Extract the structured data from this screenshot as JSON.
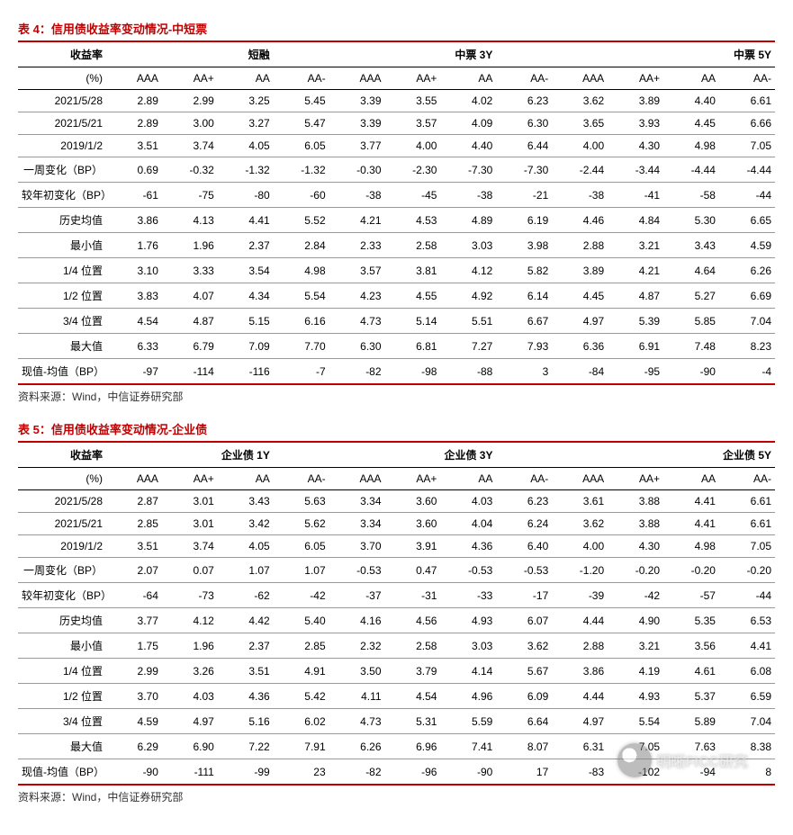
{
  "tables": [
    {
      "caption": "表 4：信用债收益率变动情况-中短票",
      "source": "资料来源：Wind，中信证券研究部",
      "header1": [
        "收益率",
        "",
        "",
        "短融",
        "",
        "",
        "",
        "中票 3Y",
        "",
        "",
        "",
        "",
        "中票 5Y"
      ],
      "header2": [
        "(%)",
        "AAA",
        "AA+",
        "AA",
        "AA-",
        "AAA",
        "AA+",
        "AA",
        "AA-",
        "AAA",
        "AA+",
        "AA",
        "AA-"
      ],
      "rows": [
        [
          "2021/5/28",
          "2.89",
          "2.99",
          "3.25",
          "5.45",
          "3.39",
          "3.55",
          "4.02",
          "6.23",
          "3.62",
          "3.89",
          "4.40",
          "6.61"
        ],
        [
          "2021/5/21",
          "2.89",
          "3.00",
          "3.27",
          "5.47",
          "3.39",
          "3.57",
          "4.09",
          "6.30",
          "3.65",
          "3.93",
          "4.45",
          "6.66"
        ],
        [
          "2019/1/2",
          "3.51",
          "3.74",
          "4.05",
          "6.05",
          "3.77",
          "4.00",
          "4.40",
          "6.44",
          "4.00",
          "4.30",
          "4.98",
          "7.05"
        ],
        [
          "一周变化（BP）",
          "0.69",
          "-0.32",
          "-1.32",
          "-1.32",
          "-0.30",
          "-2.30",
          "-7.30",
          "-7.30",
          "-2.44",
          "-3.44",
          "-4.44",
          "-4.44"
        ],
        [
          "较年初变化（BP）",
          "-61",
          "-75",
          "-80",
          "-60",
          "-38",
          "-45",
          "-38",
          "-21",
          "-38",
          "-41",
          "-58",
          "-44"
        ],
        [
          "历史均值",
          "3.86",
          "4.13",
          "4.41",
          "5.52",
          "4.21",
          "4.53",
          "4.89",
          "6.19",
          "4.46",
          "4.84",
          "5.30",
          "6.65"
        ],
        [
          "最小值",
          "1.76",
          "1.96",
          "2.37",
          "2.84",
          "2.33",
          "2.58",
          "3.03",
          "3.98",
          "2.88",
          "3.21",
          "3.43",
          "4.59"
        ],
        [
          "1/4 位置",
          "3.10",
          "3.33",
          "3.54",
          "4.98",
          "3.57",
          "3.81",
          "4.12",
          "5.82",
          "3.89",
          "4.21",
          "4.64",
          "6.26"
        ],
        [
          "1/2 位置",
          "3.83",
          "4.07",
          "4.34",
          "5.54",
          "4.23",
          "4.55",
          "4.92",
          "6.14",
          "4.45",
          "4.87",
          "5.27",
          "6.69"
        ],
        [
          "3/4 位置",
          "4.54",
          "4.87",
          "5.15",
          "6.16",
          "4.73",
          "5.14",
          "5.51",
          "6.67",
          "4.97",
          "5.39",
          "5.85",
          "7.04"
        ],
        [
          "最大值",
          "6.33",
          "6.79",
          "7.09",
          "7.70",
          "6.30",
          "6.81",
          "7.27",
          "7.93",
          "6.36",
          "6.91",
          "7.48",
          "8.23"
        ],
        [
          "现值-均值（BP）",
          "-97",
          "-114",
          "-116",
          "-7",
          "-82",
          "-98",
          "-88",
          "3",
          "-84",
          "-95",
          "-90",
          "-4"
        ]
      ]
    },
    {
      "caption": "表 5：信用债收益率变动情况-企业债",
      "source": "资料来源：Wind，中信证券研究部",
      "header1": [
        "收益率",
        "",
        "",
        "企业债 1Y",
        "",
        "",
        "",
        "企业债 3Y",
        "",
        "",
        "",
        "",
        "企业债 5Y"
      ],
      "header2": [
        "(%)",
        "AAA",
        "AA+",
        "AA",
        "AA-",
        "AAA",
        "AA+",
        "AA",
        "AA-",
        "AAA",
        "AA+",
        "AA",
        "AA-"
      ],
      "rows": [
        [
          "2021/5/28",
          "2.87",
          "3.01",
          "3.43",
          "5.63",
          "3.34",
          "3.60",
          "4.03",
          "6.23",
          "3.61",
          "3.88",
          "4.41",
          "6.61"
        ],
        [
          "2021/5/21",
          "2.85",
          "3.01",
          "3.42",
          "5.62",
          "3.34",
          "3.60",
          "4.04",
          "6.24",
          "3.62",
          "3.88",
          "4.41",
          "6.61"
        ],
        [
          "2019/1/2",
          "3.51",
          "3.74",
          "4.05",
          "6.05",
          "3.70",
          "3.91",
          "4.36",
          "6.40",
          "4.00",
          "4.30",
          "4.98",
          "7.05"
        ],
        [
          "一周变化（BP）",
          "2.07",
          "0.07",
          "1.07",
          "1.07",
          "-0.53",
          "0.47",
          "-0.53",
          "-0.53",
          "-1.20",
          "-0.20",
          "-0.20",
          "-0.20"
        ],
        [
          "较年初变化（BP）",
          "-64",
          "-73",
          "-62",
          "-42",
          "-37",
          "-31",
          "-33",
          "-17",
          "-39",
          "-42",
          "-57",
          "-44"
        ],
        [
          "历史均值",
          "3.77",
          "4.12",
          "4.42",
          "5.40",
          "4.16",
          "4.56",
          "4.93",
          "6.07",
          "4.44",
          "4.90",
          "5.35",
          "6.53"
        ],
        [
          "最小值",
          "1.75",
          "1.96",
          "2.37",
          "2.85",
          "2.32",
          "2.58",
          "3.03",
          "3.62",
          "2.88",
          "3.21",
          "3.56",
          "4.41"
        ],
        [
          "1/4 位置",
          "2.99",
          "3.26",
          "3.51",
          "4.91",
          "3.50",
          "3.79",
          "4.14",
          "5.67",
          "3.86",
          "4.19",
          "4.61",
          "6.08"
        ],
        [
          "1/2 位置",
          "3.70",
          "4.03",
          "4.36",
          "5.42",
          "4.11",
          "4.54",
          "4.96",
          "6.09",
          "4.44",
          "4.93",
          "5.37",
          "6.59"
        ],
        [
          "3/4 位置",
          "4.59",
          "4.97",
          "5.16",
          "6.02",
          "4.73",
          "5.31",
          "5.59",
          "6.64",
          "4.97",
          "5.54",
          "5.89",
          "7.04"
        ],
        [
          "最大值",
          "6.29",
          "6.90",
          "7.22",
          "7.91",
          "6.26",
          "6.96",
          "7.41",
          "8.07",
          "6.31",
          "7.05",
          "7.63",
          "8.38"
        ],
        [
          "现值-均值（BP）",
          "-90",
          "-111",
          "-99",
          "23",
          "-82",
          "-96",
          "-90",
          "17",
          "-83",
          "-102",
          "-94",
          "8"
        ]
      ]
    }
  ],
  "watermark": "明晰FICC研究"
}
